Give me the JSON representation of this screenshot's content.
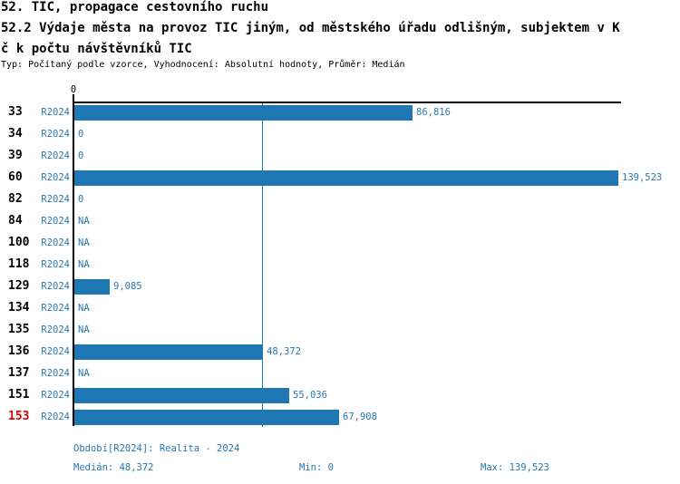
{
  "header": {
    "title_line1": "52. TIC, propagace cestovního ruchu",
    "title_line2": "52.2 Výdaje města na provoz TIC jiným, od městského úřadu odlišným, subjektem v K",
    "title_line3": "č k počtu návštěvníků TIC",
    "meta": "Typ: Počítaný podle vzorce, Vyhodnocení: Absolutní hodnoty, Průměr: Medián"
  },
  "colors": {
    "bar": "#1f77b4",
    "blue_text": "#2878b4",
    "highlight_red": "#dd0000",
    "axis": "#000000"
  },
  "chart_data": {
    "type": "bar",
    "orientation": "horizontal",
    "title": "52.2 Výdaje města na provoz TIC jiným, od městského úřadu odlišným, subjektem v Kč k počtu návštěvníků TIC",
    "axis_tick_label": "0",
    "xlim": [
      0,
      139523
    ],
    "grid": "median-line-only",
    "median_value": 48372,
    "legend_position": "none",
    "series_name": "R2024",
    "categories": [
      "33",
      "34",
      "39",
      "60",
      "82",
      "84",
      "100",
      "118",
      "129",
      "134",
      "135",
      "136",
      "137",
      "151",
      "153"
    ],
    "rows": [
      {
        "id": "33",
        "period": "R2024",
        "value": 86816,
        "label": "86,816",
        "highlighted": false
      },
      {
        "id": "34",
        "period": "R2024",
        "value": 0,
        "label": "0",
        "highlighted": false
      },
      {
        "id": "39",
        "period": "R2024",
        "value": 0,
        "label": "0",
        "highlighted": false
      },
      {
        "id": "60",
        "period": "R2024",
        "value": 139523,
        "label": "139,523",
        "highlighted": false
      },
      {
        "id": "82",
        "period": "R2024",
        "value": 0,
        "label": "0",
        "highlighted": false
      },
      {
        "id": "84",
        "period": "R2024",
        "value": null,
        "label": "NA",
        "highlighted": false
      },
      {
        "id": "100",
        "period": "R2024",
        "value": null,
        "label": "NA",
        "highlighted": false
      },
      {
        "id": "118",
        "period": "R2024",
        "value": null,
        "label": "NA",
        "highlighted": false
      },
      {
        "id": "129",
        "period": "R2024",
        "value": 9085,
        "label": "9,085",
        "highlighted": false
      },
      {
        "id": "134",
        "period": "R2024",
        "value": null,
        "label": "NA",
        "highlighted": false
      },
      {
        "id": "135",
        "period": "R2024",
        "value": null,
        "label": "NA",
        "highlighted": false
      },
      {
        "id": "136",
        "period": "R2024",
        "value": 48372,
        "label": "48,372",
        "highlighted": false
      },
      {
        "id": "137",
        "period": "R2024",
        "value": null,
        "label": "NA",
        "highlighted": false
      },
      {
        "id": "151",
        "period": "R2024",
        "value": 55036,
        "label": "55,036",
        "highlighted": false
      },
      {
        "id": "153",
        "period": "R2024",
        "value": 67908,
        "label": "67,908",
        "highlighted": true
      }
    ]
  },
  "footer": {
    "period_line": "Období[R2024]: Realita - 2024",
    "median": "Medián: 48,372",
    "min": "Min: 0",
    "max": "Max: 139,523"
  }
}
